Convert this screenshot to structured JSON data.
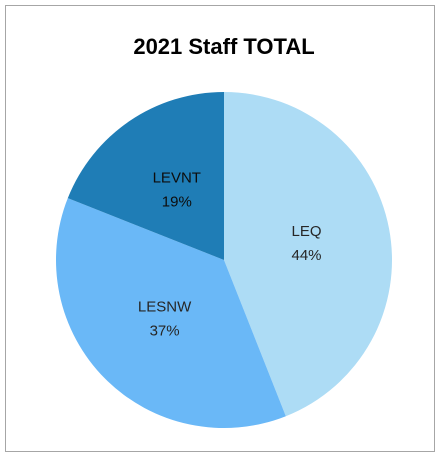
{
  "chart_data": {
    "type": "pie",
    "title": "2021 Staff TOTAL",
    "categories": [
      "LEQ",
      "LESNW",
      "LEVNT"
    ],
    "values": [
      44,
      37,
      19
    ],
    "value_labels": [
      "44%",
      "37%",
      "19%"
    ],
    "colors": [
      "#addcf5",
      "#6ab8f7",
      "#1f7db6"
    ]
  }
}
